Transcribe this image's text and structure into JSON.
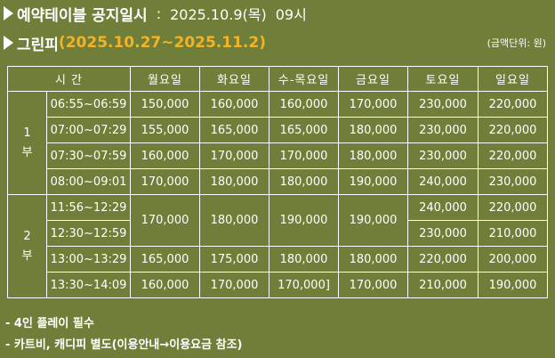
{
  "header": {
    "reservation_label": "예약테이블 공지일시",
    "colon": ":",
    "notice_date": "2025.10.9(목)",
    "notice_time": "09시"
  },
  "section": {
    "course_name": "그린피",
    "period_open": "(",
    "period": "2025.10.27~2025.11.2",
    "period_close": ")",
    "unit_note": "(금액단위: 원)"
  },
  "table": {
    "time_header": "시 간",
    "day_headers": [
      "월요일",
      "화요일",
      "수-목요일",
      "금요일",
      "토요일",
      "일요일"
    ],
    "part1": {
      "label_num": "1",
      "label_suffix": "부",
      "rows": [
        {
          "time": "06:55~06:59",
          "mon": "150,000",
          "tue": "160,000",
          "wedthu": "160,000",
          "fri": "170,000",
          "sat": "230,000",
          "sun": "220,000"
        },
        {
          "time": "07:00~07:29",
          "mon": "155,000",
          "tue": "165,000",
          "wedthu": "165,000",
          "fri": "180,000",
          "sat": "230,000",
          "sun": "220,000"
        },
        {
          "time": "07:30~07:59",
          "mon": "160,000",
          "tue": "170,000",
          "wedthu": "170,000",
          "fri": "180,000",
          "sat": "230,000",
          "sun": "220,000"
        },
        {
          "time": "08:00~09:01",
          "mon": "170,000",
          "tue": "180,000",
          "wedthu": "180,000",
          "fri": "190,000",
          "sat": "240,000",
          "sun": "230,000"
        }
      ]
    },
    "part2": {
      "label_num": "2",
      "label_suffix": "부",
      "merged": {
        "mon": "170,000",
        "tue": "180,000",
        "wedthu": "190,000",
        "fri": "190,000"
      },
      "rows": [
        {
          "time": "11:56~12:29",
          "sat": "240,000",
          "sun": "220,000"
        },
        {
          "time": "12:30~12:59",
          "sat": "230,000",
          "sun": "210,000"
        },
        {
          "time": "13:00~13:29",
          "mon": "165,000",
          "tue": "175,000",
          "wedthu": "180,000",
          "fri": "180,000",
          "sat": "220,000",
          "sun": "200,000"
        },
        {
          "time": "13:30~14:09",
          "mon": "160,000",
          "tue": "170,000",
          "wedthu": "170,000]",
          "fri": "170,000",
          "sat": "210,000",
          "sun": "190,000"
        }
      ]
    }
  },
  "footer": {
    "note1": "- 4인 플레이 필수",
    "note2": "- 카트비, 캐디피 별도(이용안내→이용요금 참조)"
  }
}
